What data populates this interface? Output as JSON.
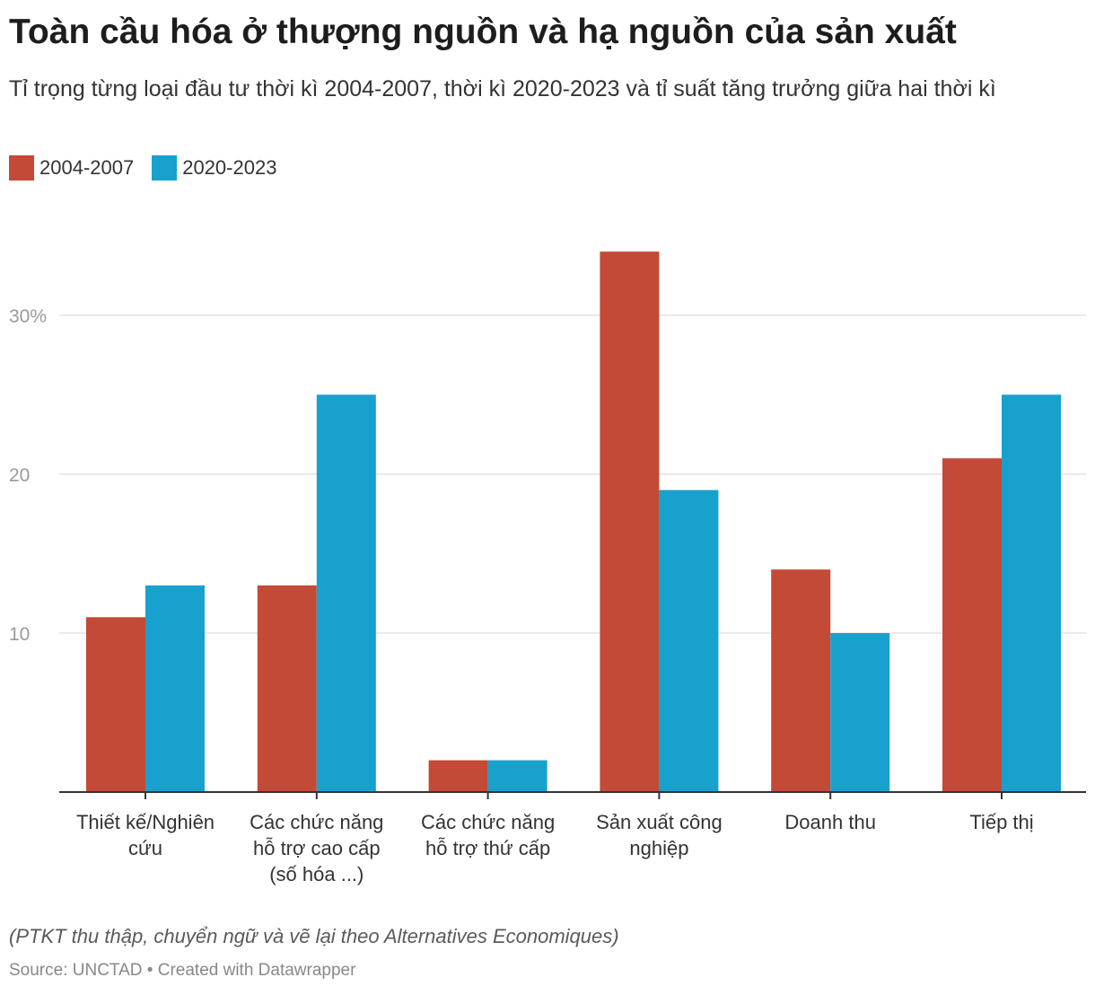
{
  "header": {
    "title": "Toàn cầu hóa ở thượng nguồn và hạ nguồn của sản xuất",
    "subtitle": "Tỉ trọng từng loại đầu tư thời kì 2004-2007, thời kì 2020-2023 và tỉ suất tăng trưởng giữa hai thời kì"
  },
  "footer": {
    "note": "(PTKT thu thập, chuyển ngữ và vẽ lại theo Alternatives Economiques)",
    "source_label": "Source: UNCTAD",
    "separator": " • ",
    "credit": "Created with Datawrapper"
  },
  "colors": {
    "series_2004_2007": "#c34a36",
    "series_2020_2023": "#18a1cd",
    "grid": "#e3e3e3",
    "baseline": "#333333"
  },
  "chart_data": {
    "type": "bar",
    "title": "Toàn cầu hóa ở thượng nguồn và hạ nguồn của sản xuất",
    "subtitle": "Tỉ trọng từng loại đầu tư thời kì 2004-2007, thời kì 2020-2023 và tỉ suất tăng trưởng giữa hai thời kì",
    "xlabel": "",
    "ylabel": "",
    "ylim": [
      0,
      35
    ],
    "yticks": [
      {
        "value": 10,
        "label": "10"
      },
      {
        "value": 20,
        "label": "20"
      },
      {
        "value": 30,
        "label": "30%"
      }
    ],
    "grid": true,
    "legend_position": "top-left",
    "categories": [
      [
        "Thiết kế/Nghiên",
        "cứu"
      ],
      [
        "Các chức năng",
        "hỗ trợ cao cấp",
        "(số hóa ...)"
      ],
      [
        "Các chức năng",
        "hỗ trợ thứ cấp"
      ],
      [
        "Sản xuất công",
        "nghiệp"
      ],
      [
        "Doanh thu"
      ],
      [
        "Tiếp thị"
      ]
    ],
    "series": [
      {
        "name": "2004-2007",
        "color": "#c34a36",
        "values": [
          11,
          13,
          2,
          34,
          14,
          21
        ]
      },
      {
        "name": "2020-2023",
        "color": "#18a1cd",
        "values": [
          13,
          25,
          2,
          19,
          10,
          25
        ]
      }
    ]
  }
}
